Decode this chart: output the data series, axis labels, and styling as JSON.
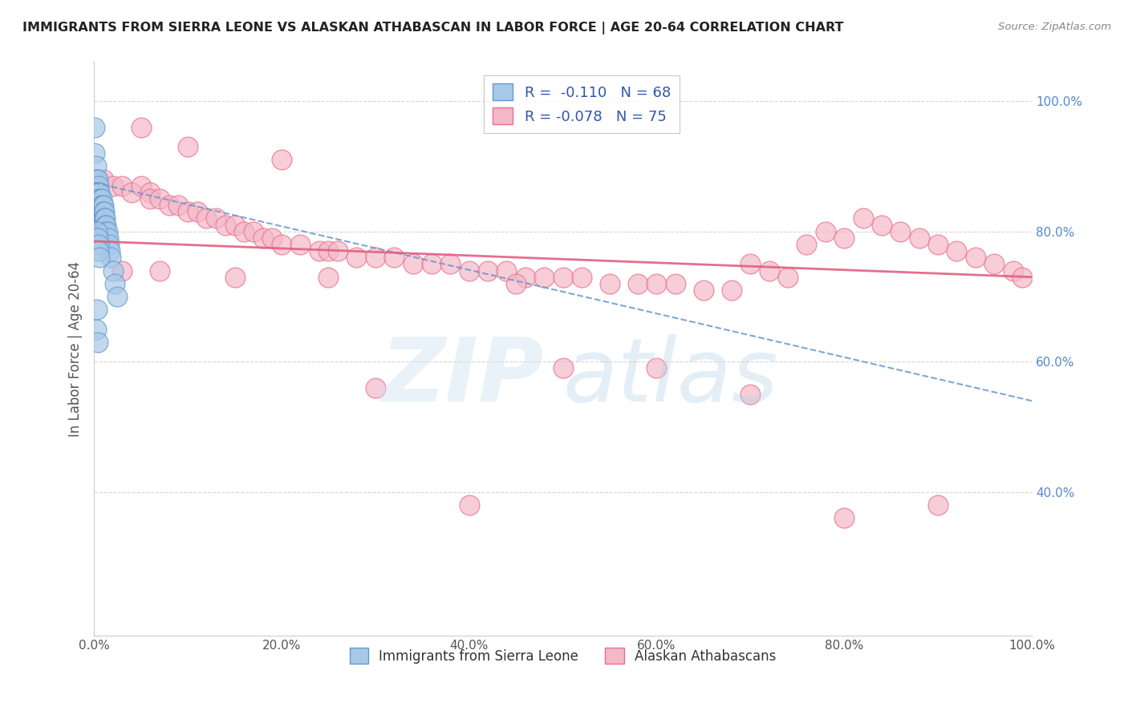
{
  "title": "IMMIGRANTS FROM SIERRA LEONE VS ALASKAN ATHABASCAN IN LABOR FORCE | AGE 20-64 CORRELATION CHART",
  "source": "Source: ZipAtlas.com",
  "ylabel": "In Labor Force | Age 20-64",
  "legend_label_blue": "Immigrants from Sierra Leone",
  "legend_label_pink": "Alaskan Athabascans",
  "r_blue": -0.11,
  "n_blue": 68,
  "r_pink": -0.078,
  "n_pink": 75,
  "blue_color": "#a8c8e8",
  "pink_color": "#f4b8c8",
  "blue_edge_color": "#6699cc",
  "pink_edge_color": "#e87090",
  "blue_line_color": "#6699cc",
  "pink_line_color": "#e06080",
  "xlim": [
    0.0,
    1.0
  ],
  "ylim": [
    0.18,
    1.06
  ],
  "yticks": [
    0.4,
    0.6,
    0.8,
    1.0
  ],
  "ytick_labels": [
    "40.0%",
    "60.0%",
    "80.0%",
    "100.0%"
  ],
  "xticks": [
    0.0,
    0.2,
    0.4,
    0.6,
    0.8,
    1.0
  ],
  "xtick_labels": [
    "0.0%",
    "20.0%",
    "40.0%",
    "60.0%",
    "80.0%",
    "100.0%"
  ],
  "blue_trend_x0": 0.0,
  "blue_trend_y0": 0.875,
  "blue_trend_x1": 1.0,
  "blue_trend_y1": 0.54,
  "pink_trend_x0": 0.0,
  "pink_trend_y0": 0.785,
  "pink_trend_x1": 1.0,
  "pink_trend_y1": 0.73,
  "blue_x": [
    0.001,
    0.001,
    0.001,
    0.002,
    0.002,
    0.002,
    0.002,
    0.002,
    0.003,
    0.003,
    0.003,
    0.003,
    0.003,
    0.003,
    0.004,
    0.004,
    0.004,
    0.004,
    0.004,
    0.004,
    0.004,
    0.005,
    0.005,
    0.005,
    0.005,
    0.005,
    0.005,
    0.006,
    0.006,
    0.006,
    0.006,
    0.006,
    0.007,
    0.007,
    0.007,
    0.007,
    0.008,
    0.008,
    0.008,
    0.008,
    0.009,
    0.009,
    0.009,
    0.01,
    0.01,
    0.01,
    0.011,
    0.011,
    0.012,
    0.012,
    0.013,
    0.013,
    0.014,
    0.015,
    0.016,
    0.017,
    0.018,
    0.02,
    0.022,
    0.025,
    0.003,
    0.004,
    0.005,
    0.005,
    0.006,
    0.003,
    0.002,
    0.004
  ],
  "blue_y": [
    0.96,
    0.92,
    0.88,
    0.9,
    0.88,
    0.86,
    0.84,
    0.82,
    0.88,
    0.86,
    0.84,
    0.83,
    0.82,
    0.81,
    0.88,
    0.86,
    0.85,
    0.84,
    0.83,
    0.82,
    0.81,
    0.87,
    0.86,
    0.85,
    0.84,
    0.83,
    0.82,
    0.86,
    0.85,
    0.84,
    0.83,
    0.82,
    0.85,
    0.84,
    0.83,
    0.82,
    0.85,
    0.84,
    0.83,
    0.82,
    0.84,
    0.83,
    0.82,
    0.84,
    0.83,
    0.82,
    0.83,
    0.82,
    0.82,
    0.81,
    0.81,
    0.8,
    0.8,
    0.79,
    0.78,
    0.77,
    0.76,
    0.74,
    0.72,
    0.7,
    0.8,
    0.79,
    0.78,
    0.77,
    0.76,
    0.68,
    0.65,
    0.63
  ],
  "pink_x": [
    0.01,
    0.02,
    0.03,
    0.04,
    0.05,
    0.06,
    0.06,
    0.07,
    0.08,
    0.09,
    0.1,
    0.11,
    0.12,
    0.13,
    0.14,
    0.15,
    0.16,
    0.17,
    0.18,
    0.19,
    0.2,
    0.22,
    0.24,
    0.25,
    0.26,
    0.28,
    0.3,
    0.32,
    0.34,
    0.36,
    0.38,
    0.4,
    0.42,
    0.44,
    0.46,
    0.48,
    0.5,
    0.52,
    0.55,
    0.58,
    0.6,
    0.62,
    0.65,
    0.68,
    0.7,
    0.72,
    0.74,
    0.76,
    0.78,
    0.8,
    0.82,
    0.84,
    0.86,
    0.88,
    0.9,
    0.92,
    0.94,
    0.96,
    0.98,
    0.99,
    0.05,
    0.1,
    0.2,
    0.3,
    0.4,
    0.5,
    0.6,
    0.7,
    0.8,
    0.9,
    0.03,
    0.07,
    0.15,
    0.25,
    0.45
  ],
  "pink_y": [
    0.88,
    0.87,
    0.87,
    0.86,
    0.87,
    0.86,
    0.85,
    0.85,
    0.84,
    0.84,
    0.83,
    0.83,
    0.82,
    0.82,
    0.81,
    0.81,
    0.8,
    0.8,
    0.79,
    0.79,
    0.78,
    0.78,
    0.77,
    0.77,
    0.77,
    0.76,
    0.76,
    0.76,
    0.75,
    0.75,
    0.75,
    0.74,
    0.74,
    0.74,
    0.73,
    0.73,
    0.73,
    0.73,
    0.72,
    0.72,
    0.72,
    0.72,
    0.71,
    0.71,
    0.75,
    0.74,
    0.73,
    0.78,
    0.8,
    0.79,
    0.82,
    0.81,
    0.8,
    0.79,
    0.78,
    0.77,
    0.76,
    0.75,
    0.74,
    0.73,
    0.96,
    0.93,
    0.91,
    0.56,
    0.38,
    0.59,
    0.59,
    0.55,
    0.36,
    0.38,
    0.74,
    0.74,
    0.73,
    0.73,
    0.72
  ]
}
